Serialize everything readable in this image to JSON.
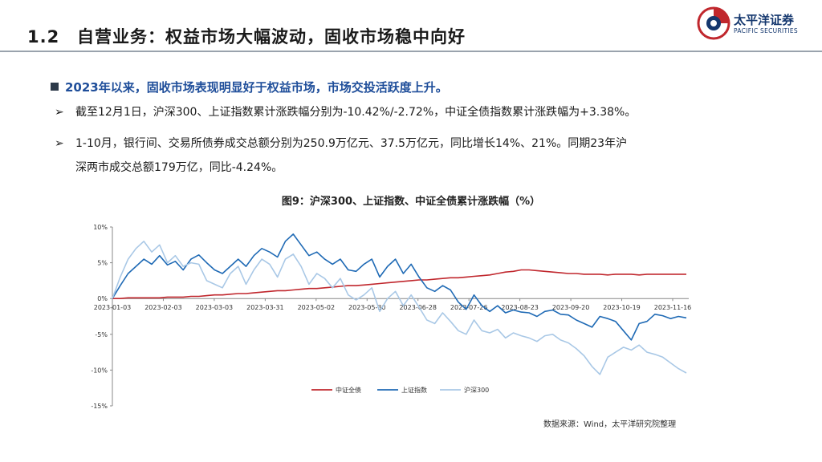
{
  "header": {
    "section_number": "1.2",
    "title": "自营业务：权益市场大幅波动，固收市场稳中向好",
    "logo_name": "太平洋证券",
    "logo_english": "PACIFIC SECURITIES"
  },
  "bullets": {
    "main": "2023年以来，固收市场表现明显好于权益市场，市场交投活跃度上升。",
    "item1": "截至12月1日，沪深300、上证指数累计涨跌幅分别为-10.42%/-2.72%，中证全债指数累计涨跌幅为+3.38%。",
    "item2_line1": "1-10月，银行间、交易所债券成交总额分别为250.9万亿元、37.5万亿元，同比增长14%、21%。同期23年沪",
    "item2_line2": "深两市成交总额179万亿，同比-4.24%。",
    "arrow": "➢"
  },
  "chart": {
    "title": "图9：沪深300、上证指数、中证全债累计涨跌幅（%）",
    "source": "数据来源：Wind，太平洋研究院整理"
  },
  "chart_data": {
    "type": "line",
    "title": "图9：沪深300、上证指数、中证全债累计涨跌幅（%）",
    "ylim": [
      -15,
      10
    ],
    "y_ticks": [
      "10%",
      "5%",
      "0%",
      "-5%",
      "-10%",
      "-15%"
    ],
    "y_tick_values": [
      10,
      5,
      0,
      -5,
      -10,
      -15
    ],
    "x_tick_labels": [
      "2023-01-03",
      "2023-02-03",
      "2023-03-03",
      "2023-03-31",
      "2023-05-02",
      "2023-05-30",
      "2023-06-28",
      "2023-07-26",
      "2023-08-23",
      "2023-09-20",
      "2023-10-19",
      "2023-11-16"
    ],
    "legend_position": "bottom",
    "colors": {
      "zz": "#c0272d",
      "sh": "#1f6ab5",
      "hs": "#a9c8e6"
    },
    "series": [
      {
        "name": "中证全债",
        "key": "zz",
        "values": [
          0,
          0,
          0.1,
          0.1,
          0.1,
          0.1,
          0.1,
          0.2,
          0.2,
          0.2,
          0.3,
          0.3,
          0.4,
          0.5,
          0.5,
          0.6,
          0.7,
          0.7,
          0.8,
          0.9,
          1.0,
          1.1,
          1.1,
          1.2,
          1.3,
          1.4,
          1.4,
          1.5,
          1.6,
          1.7,
          1.8,
          1.8,
          1.9,
          2.0,
          2.1,
          2.2,
          2.3,
          2.4,
          2.5,
          2.6,
          2.6,
          2.7,
          2.8,
          2.9,
          2.9,
          3.0,
          3.1,
          3.2,
          3.3,
          3.5,
          3.7,
          3.8,
          4.0,
          4.0,
          3.9,
          3.8,
          3.7,
          3.6,
          3.5,
          3.5,
          3.4,
          3.4,
          3.4,
          3.3,
          3.4,
          3.4,
          3.4,
          3.3,
          3.4,
          3.4,
          3.4,
          3.4,
          3.4,
          3.4
        ]
      },
      {
        "name": "上证指数",
        "key": "sh",
        "values": [
          0,
          1.8,
          3.5,
          4.5,
          5.5,
          4.8,
          6.0,
          4.7,
          5.2,
          4.0,
          5.5,
          6.1,
          5.0,
          4.0,
          3.5,
          4.5,
          5.5,
          4.5,
          6.0,
          7.0,
          6.5,
          5.8,
          8.0,
          9.0,
          7.5,
          6.0,
          6.5,
          5.5,
          4.8,
          5.5,
          4.0,
          3.8,
          4.8,
          5.5,
          3.0,
          4.5,
          5.5,
          3.5,
          4.8,
          3.0,
          1.5,
          1.0,
          1.8,
          1.2,
          -0.5,
          -1.5,
          0.5,
          -1.0,
          -1.8,
          -1.0,
          -2.0,
          -1.6,
          -1.9,
          -2.0,
          -2.5,
          -1.8,
          -1.6,
          -2.2,
          -2.3,
          -3.0,
          -3.5,
          -4.0,
          -2.5,
          -2.8,
          -3.2,
          -4.5,
          -5.8,
          -3.5,
          -3.2,
          -2.2,
          -2.4,
          -2.8,
          -2.5,
          -2.7
        ]
      },
      {
        "name": "沪深300",
        "key": "hs",
        "values": [
          0,
          3.0,
          5.5,
          7.0,
          8.0,
          6.5,
          7.5,
          5.0,
          6.0,
          4.5,
          5.0,
          4.8,
          2.5,
          2.0,
          1.5,
          3.5,
          4.5,
          2.0,
          4.0,
          5.5,
          4.8,
          3.0,
          5.5,
          6.2,
          4.5,
          2.0,
          3.5,
          2.8,
          1.5,
          2.8,
          0.5,
          -0.2,
          0.5,
          1.5,
          -1.8,
          0,
          1.0,
          -1.0,
          0.5,
          -1.2,
          -3.0,
          -3.5,
          -2.0,
          -3.2,
          -4.5,
          -5.0,
          -3.0,
          -4.5,
          -4.8,
          -4.3,
          -5.5,
          -4.8,
          -5.2,
          -5.5,
          -6.0,
          -5.2,
          -5.0,
          -5.8,
          -6.2,
          -7.0,
          -8.0,
          -9.5,
          -10.6,
          -8.2,
          -7.5,
          -6.8,
          -7.2,
          -6.5,
          -7.5,
          -7.8,
          -8.2,
          -9.0,
          -9.8,
          -10.4
        ]
      }
    ]
  }
}
